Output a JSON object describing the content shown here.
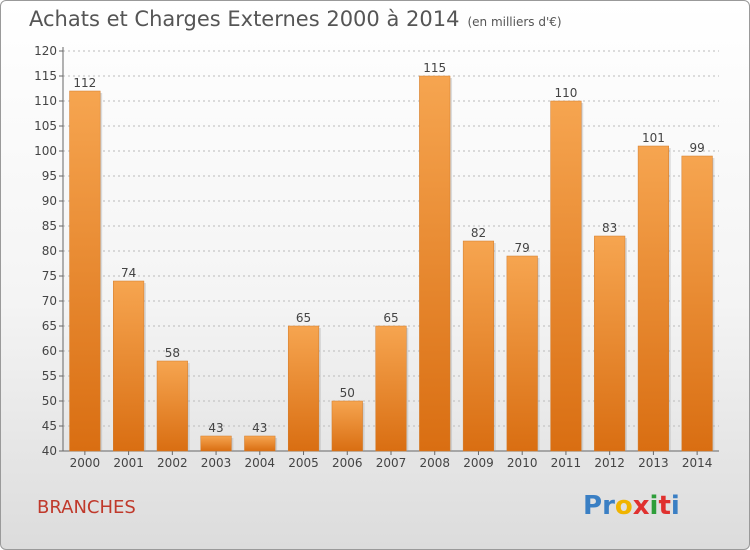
{
  "header": {
    "title": "Achats et Charges Externes 2000 à 2014",
    "unit": "(en milliers d'€)"
  },
  "footer": {
    "town": "BRANCHES",
    "logo_letters": [
      "P",
      "r",
      "o",
      "x",
      "i",
      "t",
      "i"
    ],
    "logo_colors": [
      "#3a7fc4",
      "#3a7fc4",
      "#f0b400",
      "#e0312f",
      "#2e9e3a",
      "#e0312f",
      "#3a7fc4"
    ]
  },
  "colors": {
    "bar_top": "#f6a550",
    "bar_bottom": "#d96e12",
    "text": "#444444",
    "grid": "#bbbbbb"
  },
  "chart_data": {
    "type": "bar",
    "categories": [
      "2000",
      "2001",
      "2002",
      "2003",
      "2004",
      "2005",
      "2006",
      "2007",
      "2008",
      "2009",
      "2010",
      "2011",
      "2012",
      "2013",
      "2014"
    ],
    "values": [
      112,
      74,
      58,
      43,
      43,
      65,
      50,
      65,
      115,
      82,
      79,
      110,
      83,
      101,
      99
    ],
    "yticks": [
      40,
      45,
      50,
      55,
      60,
      65,
      70,
      75,
      80,
      85,
      90,
      95,
      100,
      105,
      110,
      115,
      120
    ],
    "ylim": [
      40,
      120
    ],
    "xlabel": "",
    "ylabel": "",
    "grid": true
  }
}
